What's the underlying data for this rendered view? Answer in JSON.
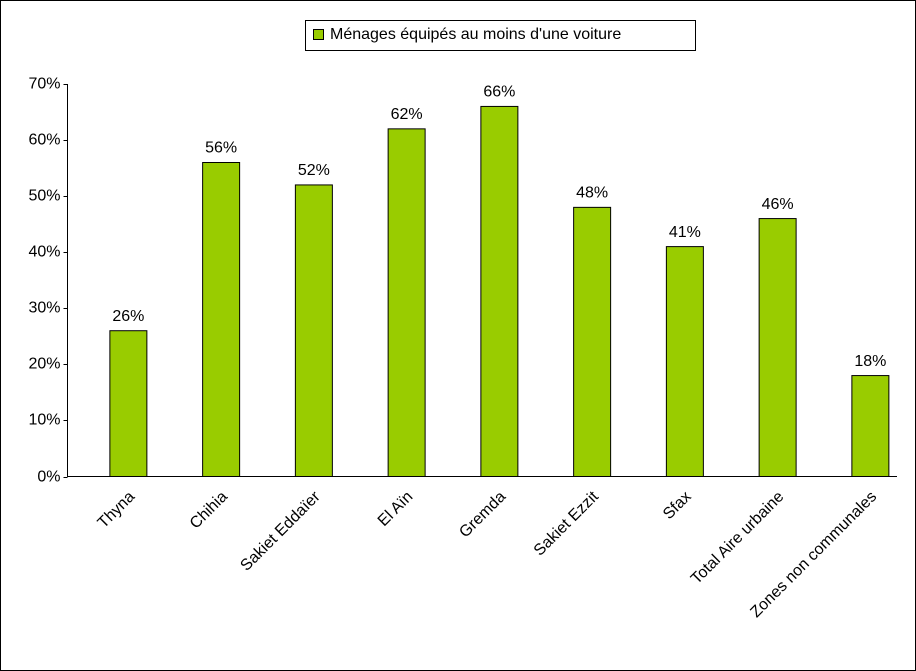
{
  "chart_data": {
    "type": "bar",
    "legend": "Ménages équipés au moins d'une voiture",
    "categories": [
      "Thyna",
      "Chihia",
      "Sakiet Eddaïer",
      "El Aïn",
      "Gremda",
      "Sakiet Ezzit",
      "Sfax",
      "Total Aire urbaine",
      "Zones non communales"
    ],
    "values": [
      26,
      56,
      52,
      62,
      66,
      48,
      41,
      46,
      18
    ],
    "value_labels": [
      "26%",
      "56%",
      "52%",
      "62%",
      "66%",
      "48%",
      "41%",
      "46%",
      "18%"
    ],
    "color": "#99cc00",
    "ylim": [
      0,
      70
    ],
    "yticks": [
      {
        "value": 0,
        "label": "0%"
      },
      {
        "value": 10,
        "label": "10%"
      },
      {
        "value": 20,
        "label": "20%"
      },
      {
        "value": 30,
        "label": "30%"
      },
      {
        "value": 40,
        "label": "40%"
      },
      {
        "value": 50,
        "label": "50%"
      },
      {
        "value": 60,
        "label": "60%"
      },
      {
        "value": 70,
        "label": "70%"
      }
    ],
    "grid": false
  }
}
